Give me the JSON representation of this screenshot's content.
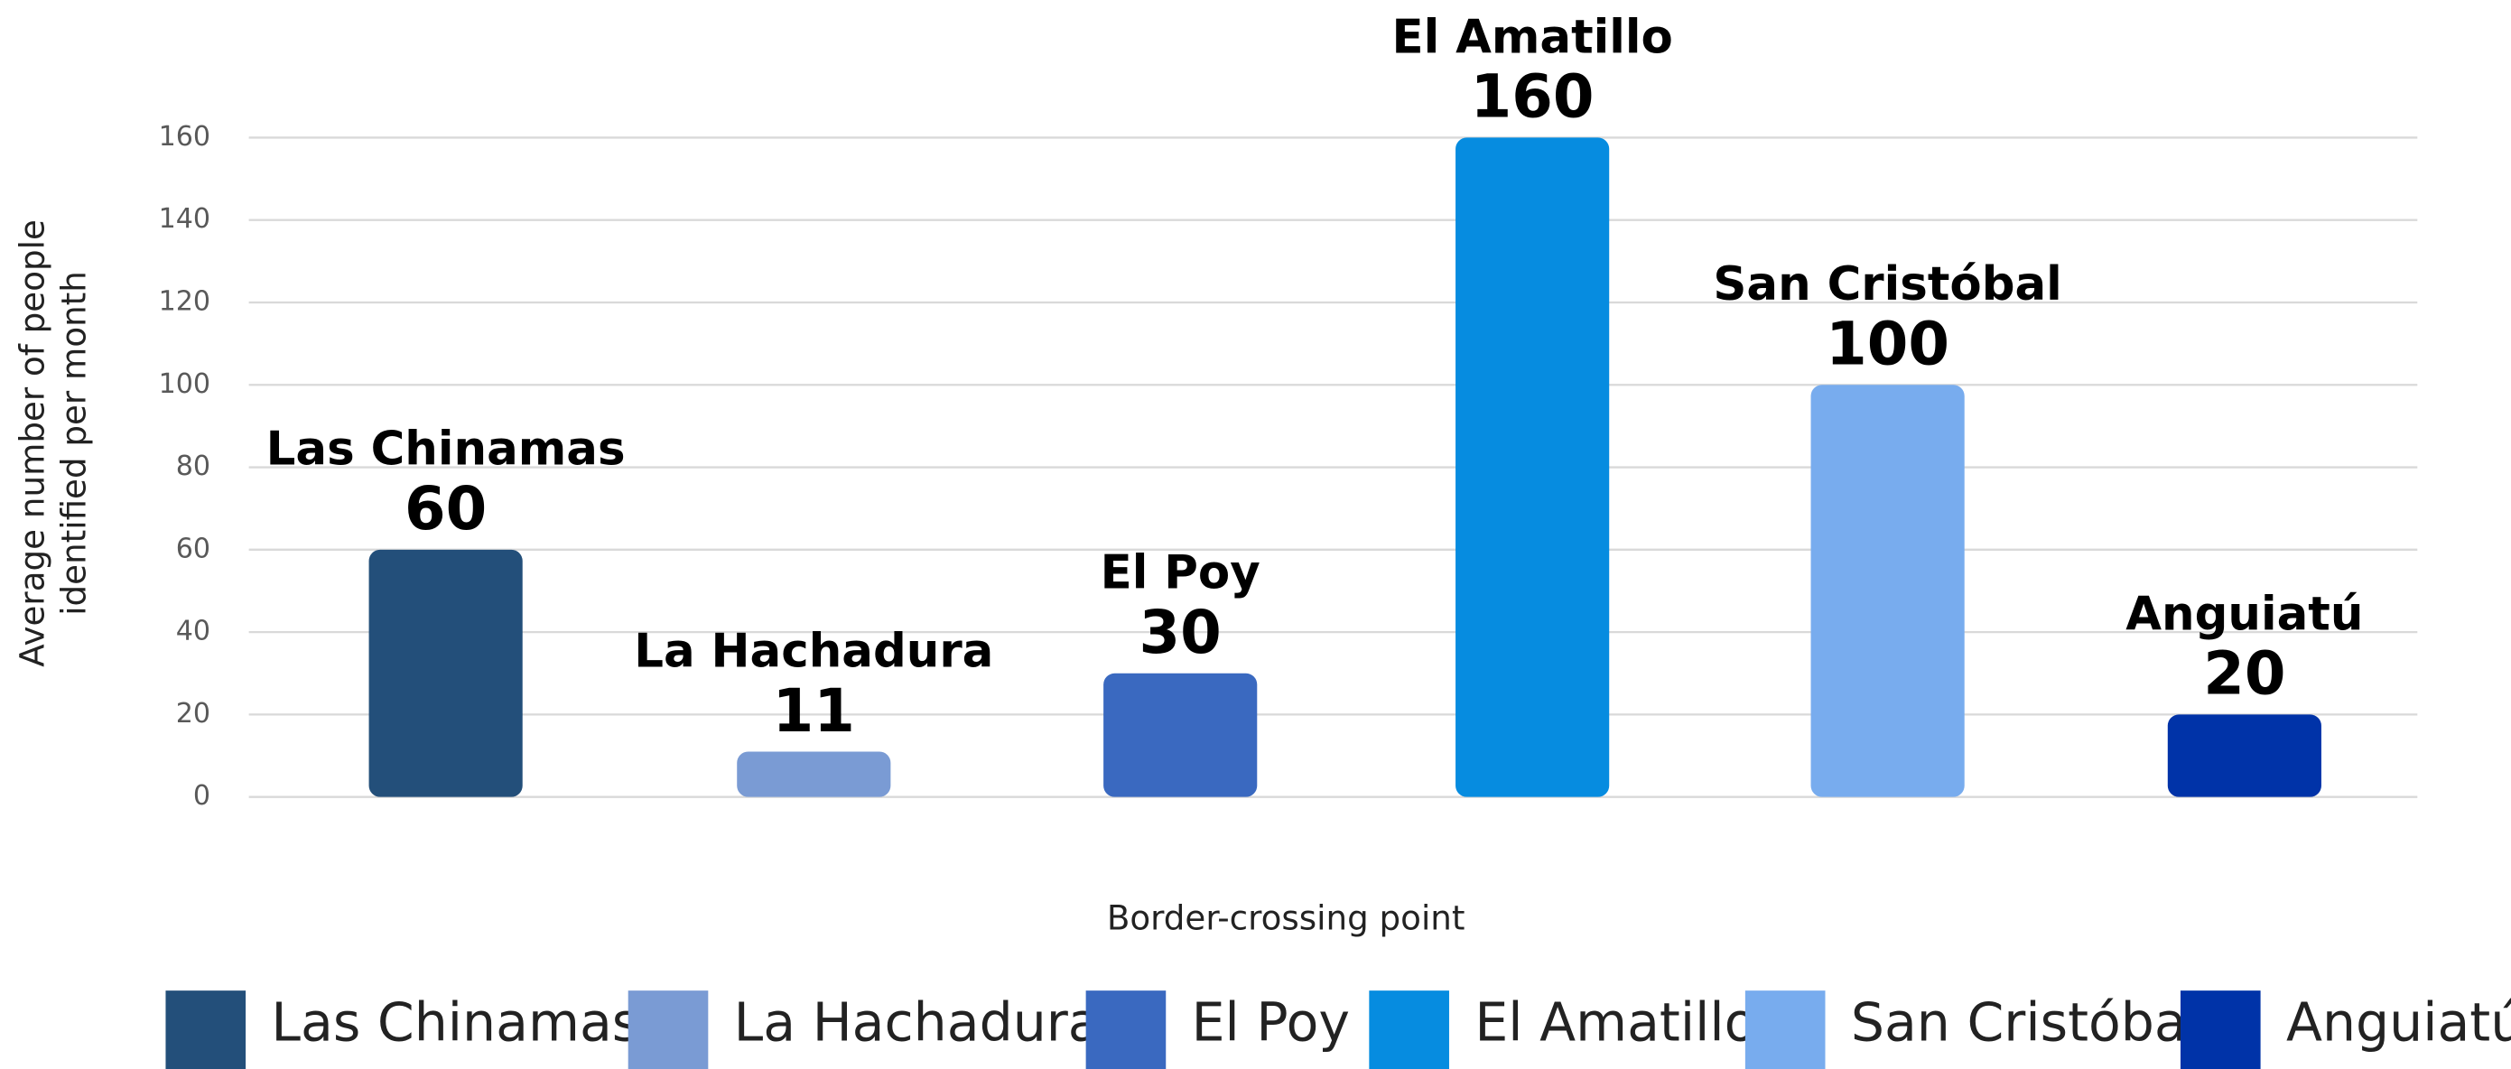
{
  "chart_data": {
    "type": "bar",
    "categories": [
      "Las Chinamas",
      "La Hachadura",
      "El Poy",
      "El Amatillo",
      "San Cristóbal",
      "Anguiatú"
    ],
    "values": [
      60,
      11,
      30,
      160,
      100,
      20
    ],
    "colors": [
      "#234f7a",
      "#7a9bd4",
      "#3a69c0",
      "#068ce0",
      "#78acee",
      "#0033a8"
    ],
    "ylim": [
      0,
      160
    ],
    "yticks": [
      0,
      20,
      40,
      60,
      80,
      100,
      120,
      140,
      160
    ],
    "grid": true,
    "y_label": [
      "Average number of people",
      "identified per month"
    ],
    "x_label": "Border-crossing point",
    "legend": "bottom"
  }
}
